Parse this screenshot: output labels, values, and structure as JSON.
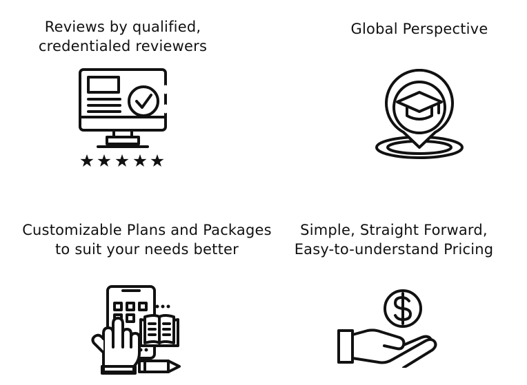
{
  "features": [
    {
      "id": "reviews",
      "icon": "monitor-check-stars-icon",
      "lines": [
        "Reviews by qualified,",
        "credentialed reviewers"
      ]
    },
    {
      "id": "global",
      "icon": "graduation-cap-location-pin-icon",
      "lines": [
        "Global Perspective"
      ]
    },
    {
      "id": "plans",
      "icon": "tablet-hand-book-pencil-icon",
      "lines": [
        "Customizable Plans and Packages",
        "to suit your needs better"
      ]
    },
    {
      "id": "pricing",
      "icon": "hand-dollar-coin-icon",
      "lines": [
        "Simple, Straight Forward,",
        "Easy-to-understand Pricing"
      ]
    }
  ],
  "colors": {
    "icon": "#111111",
    "background": "#ffffff"
  },
  "rating": {
    "stars": 5
  }
}
